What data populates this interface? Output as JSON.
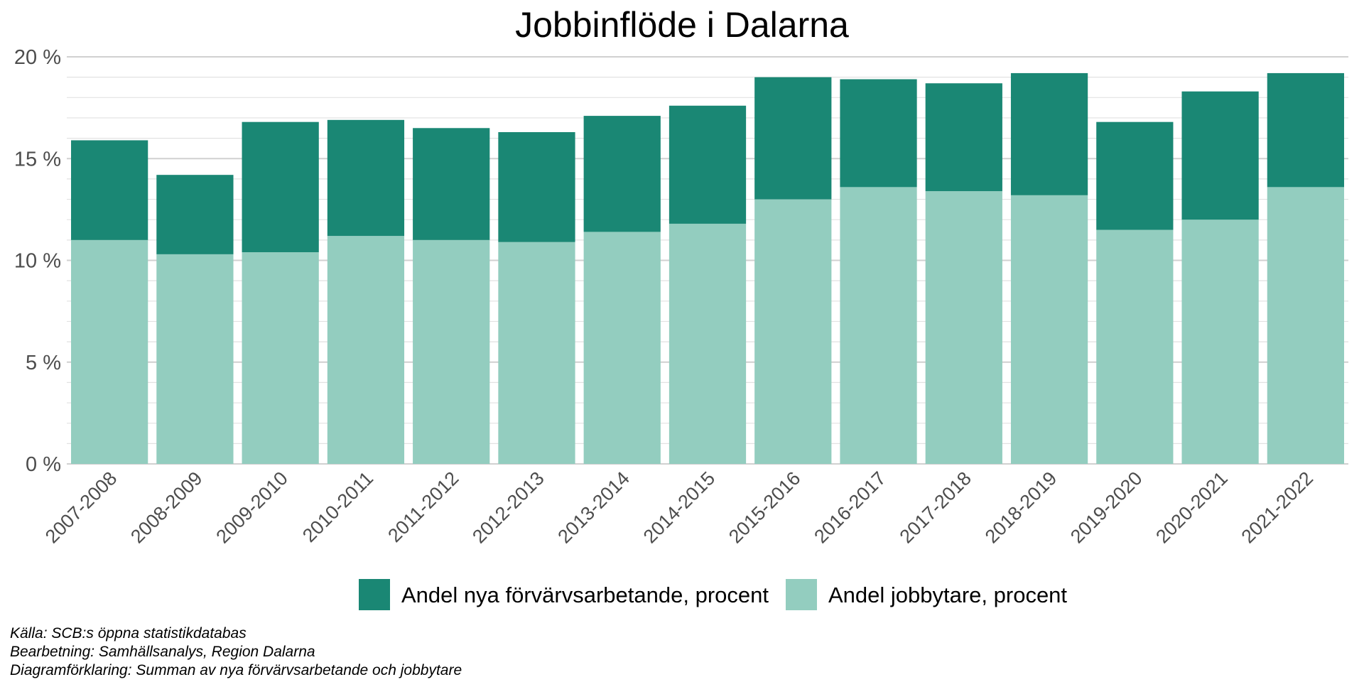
{
  "chart_data": {
    "type": "bar",
    "stacked": true,
    "title": "Jobbinflöde  i Dalarna",
    "xlabel": "",
    "ylabel": "",
    "ylim": [
      0,
      20
    ],
    "yticks": [
      0,
      5,
      10,
      15,
      20
    ],
    "ytick_labels": [
      "0 %",
      "5 %",
      "10 %",
      "15 %",
      "20 %"
    ],
    "grid": true,
    "legend_position": "bottom",
    "categories": [
      "2007-2008",
      "2008-2009",
      "2009-2010",
      "2010-2011",
      "2011-2012",
      "2012-2013",
      "2013-2014",
      "2014-2015",
      "2015-2016",
      "2016-2017",
      "2017-2018",
      "2018-2019",
      "2019-2020",
      "2020-2021",
      "2021-2022"
    ],
    "series": [
      {
        "name": "Andel jobbytare, procent",
        "color": "#93cdbf",
        "values": [
          11.0,
          10.3,
          10.4,
          11.2,
          11.0,
          10.9,
          11.4,
          11.8,
          13.0,
          13.6,
          13.4,
          13.2,
          11.5,
          12.0,
          13.6
        ]
      },
      {
        "name": "Andel nya förvärvsarbetande, procent",
        "color": "#1a8774",
        "values": [
          4.9,
          3.9,
          6.4,
          5.7,
          5.5,
          5.4,
          5.7,
          5.8,
          6.0,
          5.3,
          5.3,
          6.0,
          5.3,
          6.3,
          5.6
        ]
      }
    ],
    "legend": [
      {
        "label": "Andel nya förvärvsarbetande, procent",
        "color": "#1a8774"
      },
      {
        "label": "Andel jobbytare, procent",
        "color": "#93cdbf"
      }
    ],
    "caption": [
      "Källa: SCB:s öppna statistikdatabas",
      "Bearbetning: Samhällsanalys, Region Dalarna",
      "Diagramförklaring: Summan av nya förvärvsarbetande och jobbytare"
    ]
  }
}
